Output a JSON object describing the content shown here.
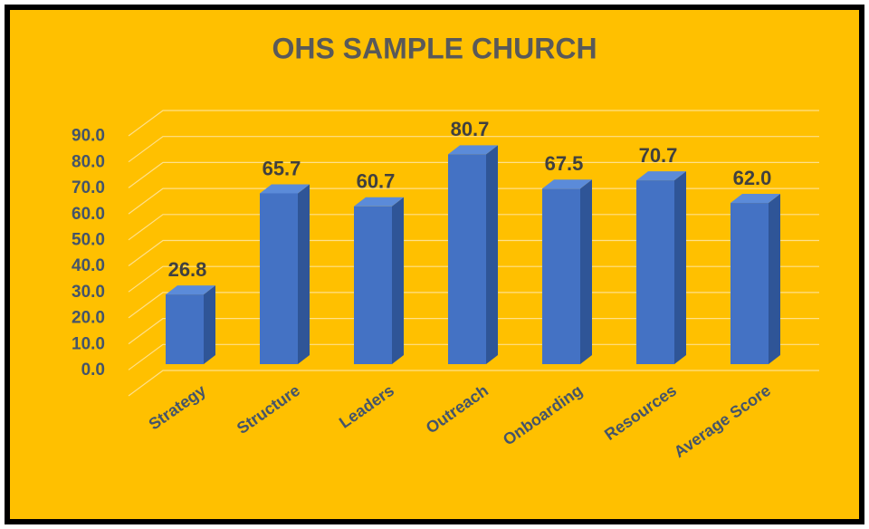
{
  "chart_data": {
    "type": "bar",
    "title": "OHS SAMPLE CHURCH",
    "categories": [
      "Strategy",
      "Structure",
      "Leaders",
      "Outreach",
      "Onboarding",
      "Resources",
      "Average Score"
    ],
    "values": [
      26.8,
      65.7,
      60.7,
      80.7,
      67.5,
      70.7,
      62.0
    ],
    "value_labels": [
      "26.8",
      "65.7",
      "60.7",
      "80.7",
      "67.5",
      "70.7",
      "62.0"
    ],
    "color": "#4472c4",
    "ylim": [
      0,
      100
    ],
    "yticks": [
      {
        "value": 0,
        "label": "0.0"
      },
      {
        "value": 10,
        "label": "10.0"
      },
      {
        "value": 20,
        "label": "20.0"
      },
      {
        "value": 30,
        "label": "30.0"
      },
      {
        "value": 40,
        "label": "40.0"
      },
      {
        "value": 50,
        "label": "50.0"
      },
      {
        "value": 60,
        "label": "60.0"
      },
      {
        "value": 70,
        "label": "70.0"
      },
      {
        "value": 80,
        "label": "80.0"
      },
      {
        "value": 90,
        "label": "90.0"
      }
    ],
    "grid": true
  }
}
